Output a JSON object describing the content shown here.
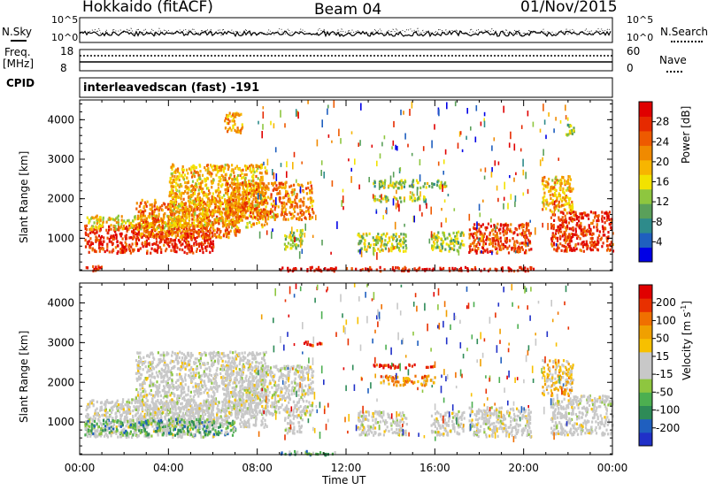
{
  "header": {
    "station": "Hokkaido (fitACF)",
    "beam": "Beam 04",
    "date": "01/Nov/2015"
  },
  "top_panels": {
    "nsky_label": "N.Sky",
    "nsearch_label": "N.Search",
    "noise_ticks_left": [
      "10^5",
      "10^0"
    ],
    "noise_ticks_right": [
      "10^5",
      "10^0"
    ],
    "freq_label_top": "Freq.",
    "freq_label_unit": "[MHz]",
    "freq_ticks": [
      "18",
      "8"
    ],
    "nave_label": "Nave",
    "nave_ticks": [
      "60",
      "0"
    ],
    "cpid_label": "CPID",
    "cpid_value": "interleavedscan (fast) -191"
  },
  "chart_data": [
    {
      "type": "heatmap",
      "title": "",
      "xlabel": "Time UT",
      "ylabel": "Slant Range [km]",
      "x_ticks": [
        "00:00",
        "04:00",
        "08:00",
        "12:00",
        "16:00",
        "20:00",
        "00:00"
      ],
      "y_ticks": [
        1000,
        2000,
        3000,
        4000
      ],
      "xlim_hours": [
        0,
        24
      ],
      "ylim_km": [
        180,
        4500
      ],
      "colorbar": {
        "label": "Power [dB]",
        "ticks": [
          "28",
          "24",
          "20",
          "16",
          "12",
          "8",
          "4"
        ],
        "colors": [
          "#0000e6",
          "#1f5fbf",
          "#2e8b8b",
          "#5aa05a",
          "#8ec63f",
          "#f2e200",
          "#f7b500",
          "#f08a00",
          "#ee5a00",
          "#e62a00",
          "#e00000"
        ]
      },
      "regions": [
        {
          "t0": 0.2,
          "t1": 6.0,
          "r0": 650,
          "r1": 1350,
          "level": 0.88
        },
        {
          "t0": 0.3,
          "t1": 4.5,
          "r0": 1250,
          "r1": 1600,
          "level": 0.55
        },
        {
          "t0": 2.5,
          "t1": 7.2,
          "r0": 1050,
          "r1": 2000,
          "level": 0.72
        },
        {
          "t0": 4.0,
          "t1": 8.4,
          "r0": 1300,
          "r1": 2900,
          "level": 0.6
        },
        {
          "t0": 6.5,
          "t1": 10.5,
          "r0": 1500,
          "r1": 2450,
          "level": 0.7
        },
        {
          "t0": 6.5,
          "t1": 7.3,
          "r0": 3700,
          "r1": 4200,
          "level": 0.65
        },
        {
          "t0": 9.2,
          "t1": 10.0,
          "r0": 750,
          "r1": 1250,
          "level": 0.4
        },
        {
          "t0": 12.5,
          "t1": 14.7,
          "r0": 700,
          "r1": 1150,
          "level": 0.45
        },
        {
          "t0": 13.1,
          "t1": 16.5,
          "r0": 2300,
          "r1": 2500,
          "level": 0.42
        },
        {
          "t0": 13.2,
          "t1": 15.5,
          "r0": 1950,
          "r1": 2100,
          "level": 0.4
        },
        {
          "t0": 15.8,
          "t1": 17.3,
          "r0": 700,
          "r1": 1200,
          "level": 0.42
        },
        {
          "t0": 17.5,
          "t1": 20.3,
          "r0": 650,
          "r1": 1400,
          "level": 0.82
        },
        {
          "t0": 21.2,
          "t1": 24.0,
          "r0": 700,
          "r1": 1700,
          "level": 0.86
        },
        {
          "t0": 20.8,
          "t1": 22.2,
          "r0": 1700,
          "r1": 2600,
          "level": 0.62
        },
        {
          "t0": 21.8,
          "t1": 22.3,
          "r0": 3600,
          "r1": 3900,
          "level": 0.4
        },
        {
          "t0": 9.0,
          "t1": 20.5,
          "r0": 200,
          "r1": 300,
          "level": 0.95
        },
        {
          "t0": 0.2,
          "t1": 1.0,
          "r0": 200,
          "r1": 340,
          "level": 0.9
        }
      ]
    },
    {
      "type": "heatmap",
      "title": "",
      "xlabel": "Time UT",
      "ylabel": "Slant Range [km]",
      "x_ticks": [
        "00:00",
        "04:00",
        "08:00",
        "12:00",
        "16:00",
        "20:00",
        "00:00"
      ],
      "y_ticks": [
        1000,
        2000,
        3000,
        4000
      ],
      "xlim_hours": [
        0,
        24
      ],
      "ylim_km": [
        180,
        4500
      ],
      "colorbar": {
        "label": "Velocity [m s^-1]",
        "ticks": [
          "200",
          "100",
          "50",
          "15",
          "-15",
          "-50",
          "-100",
          "-200"
        ],
        "colors": [
          "#2030c8",
          "#1f5fbf",
          "#2e8b57",
          "#4caf50",
          "#8ec63f",
          "#c8c8c8",
          "#c8c8c8",
          "#f7c000",
          "#f0a000",
          "#f07000",
          "#e83000",
          "#e00000"
        ]
      },
      "regions": [
        {
          "t0": 0.2,
          "t1": 6.0,
          "r0": 650,
          "r1": 1600,
          "level": 0.5
        },
        {
          "t0": 2.5,
          "t1": 8.4,
          "r0": 900,
          "r1": 2800,
          "level": 0.5
        },
        {
          "t0": 6.5,
          "t1": 10.5,
          "r0": 1200,
          "r1": 2450,
          "level": 0.5
        },
        {
          "t0": 9.2,
          "t1": 10.0,
          "r0": 750,
          "r1": 1250,
          "level": 0.5
        },
        {
          "t0": 12.5,
          "t1": 14.7,
          "r0": 700,
          "r1": 1300,
          "level": 0.5
        },
        {
          "t0": 13.2,
          "t1": 16.0,
          "r0": 2380,
          "r1": 2480,
          "level": 0.96
        },
        {
          "t0": 13.5,
          "t1": 16.0,
          "r0": 1950,
          "r1": 2200,
          "level": 0.7
        },
        {
          "t0": 10.0,
          "t1": 11.0,
          "r0": 2950,
          "r1": 3050,
          "level": 0.96
        },
        {
          "t0": 15.8,
          "t1": 17.3,
          "r0": 700,
          "r1": 1300,
          "level": 0.5
        },
        {
          "t0": 17.5,
          "t1": 20.3,
          "r0": 650,
          "r1": 1400,
          "level": 0.5
        },
        {
          "t0": 21.2,
          "t1": 24.0,
          "r0": 700,
          "r1": 1700,
          "level": 0.5
        },
        {
          "t0": 20.8,
          "t1": 22.2,
          "r0": 1700,
          "r1": 2600,
          "level": 0.62
        },
        {
          "t0": 9.0,
          "t1": 11.5,
          "r0": 200,
          "r1": 300,
          "level": 0.3
        },
        {
          "t0": 0.2,
          "t1": 7.0,
          "r0": 700,
          "r1": 1100,
          "level": 0.3
        }
      ]
    }
  ]
}
